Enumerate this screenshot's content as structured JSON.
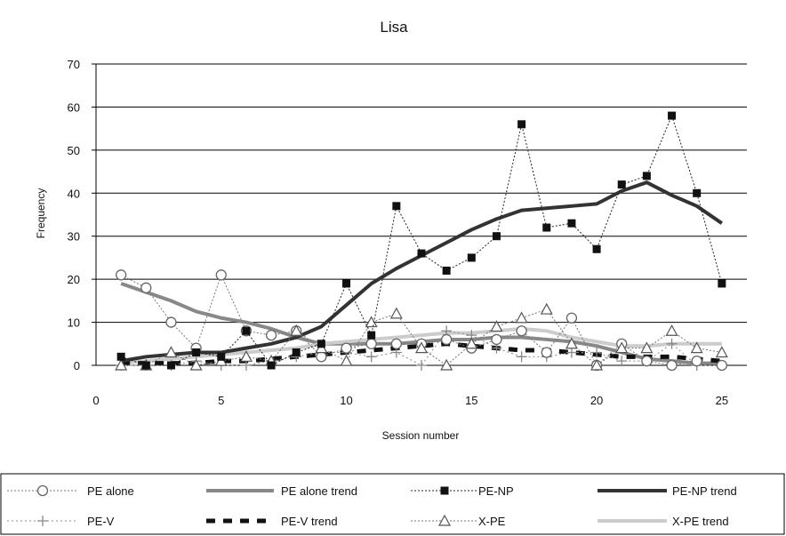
{
  "chart_data": {
    "type": "line",
    "title": "Lisa",
    "xlabel": "Session number",
    "ylabel": "Frequency",
    "xlim": [
      0,
      26
    ],
    "ylim": [
      0,
      70
    ],
    "xticks": [
      0,
      5,
      10,
      15,
      20,
      25
    ],
    "yticks": [
      0,
      10,
      20,
      30,
      40,
      50,
      60,
      70
    ],
    "grid": "horizontal",
    "legend_position": "bottom",
    "series": [
      {
        "name": "PE alone",
        "legend_label": "PE alone",
        "style": "open-circle-dotted",
        "color": "#777777",
        "x": [
          1,
          2,
          3,
          4,
          5,
          6,
          7,
          8,
          9,
          10,
          11,
          12,
          13,
          14,
          15,
          16,
          17,
          18,
          19,
          20,
          21,
          22,
          23,
          24,
          25
        ],
        "y": [
          21,
          18,
          10,
          4,
          21,
          8,
          7,
          8,
          2,
          4,
          5,
          5,
          5,
          6,
          4,
          6,
          8,
          3,
          11,
          0,
          5,
          1,
          0,
          1,
          0
        ]
      },
      {
        "name": "PE alone trend",
        "legend_label": "PE alone trend",
        "style": "thick-line",
        "color": "#888888",
        "x": [
          1,
          2,
          3,
          4,
          5,
          6,
          7,
          8,
          9,
          10,
          11,
          12,
          13,
          14,
          15,
          16,
          17,
          18,
          19,
          20,
          21,
          22,
          23,
          24,
          25
        ],
        "y": [
          19,
          17,
          15,
          12.5,
          11,
          10,
          8.5,
          6.5,
          5,
          5,
          5,
          5,
          5.5,
          6,
          6,
          6.5,
          6.5,
          6,
          5.5,
          4.5,
          3,
          1.5,
          1,
          0.5,
          0.5
        ]
      },
      {
        "name": "PE-NP",
        "legend_label": "PE-NP",
        "style": "filled-square-dotted",
        "color": "#222222",
        "x": [
          1,
          2,
          3,
          4,
          5,
          6,
          7,
          8,
          9,
          10,
          11,
          12,
          13,
          14,
          15,
          16,
          17,
          18,
          19,
          20,
          21,
          22,
          23,
          24,
          25
        ],
        "y": [
          2,
          0,
          0,
          3,
          2,
          8,
          0,
          3,
          5,
          19,
          7,
          37,
          26,
          22,
          25,
          30,
          56,
          32,
          33,
          27,
          42,
          44,
          58,
          40,
          19
        ]
      },
      {
        "name": "PE-NP trend",
        "legend_label": "PE-NP trend",
        "style": "thick-line",
        "color": "#333333",
        "x": [
          1,
          2,
          3,
          4,
          5,
          6,
          7,
          8,
          9,
          10,
          11,
          12,
          13,
          14,
          15,
          16,
          17,
          18,
          19,
          20,
          21,
          22,
          23,
          24,
          25
        ],
        "y": [
          1,
          2,
          2.5,
          3,
          3,
          4,
          5,
          6.5,
          9,
          14,
          19,
          22.5,
          25.5,
          28.5,
          31.5,
          34,
          36,
          36.5,
          37,
          37.5,
          40.5,
          42.5,
          39.5,
          37,
          33
        ]
      },
      {
        "name": "PE-V",
        "legend_label": "PE-V",
        "style": "plus-dotted",
        "color": "#888888",
        "x": [
          1,
          2,
          3,
          4,
          5,
          6,
          7,
          8,
          9,
          10,
          11,
          12,
          13,
          14,
          15,
          16,
          17,
          18,
          19,
          20,
          21,
          22,
          23,
          24,
          25
        ],
        "y": [
          0,
          0,
          0,
          1,
          0,
          0,
          1,
          2,
          3,
          3,
          2,
          3,
          0,
          8,
          7,
          4,
          2,
          2,
          3,
          3,
          1,
          1,
          5,
          0,
          0
        ]
      },
      {
        "name": "PE-V  trend",
        "legend_label": "PE-V  trend",
        "style": "thick-dashed",
        "color": "#111111",
        "x": [
          1,
          2,
          3,
          4,
          5,
          6,
          7,
          8,
          9,
          10,
          11,
          12,
          13,
          14,
          15,
          16,
          17,
          18,
          19,
          20,
          21,
          22,
          23,
          24,
          25
        ],
        "y": [
          0.5,
          0.5,
          0.5,
          0.5,
          1,
          1,
          1.5,
          2,
          2.5,
          3,
          3.5,
          4,
          4.5,
          5,
          4.5,
          4,
          3.5,
          3.5,
          3,
          2.5,
          2,
          2,
          2,
          1.5,
          1
        ]
      },
      {
        "name": "X-PE",
        "legend_label": "X-PE",
        "style": "open-triangle-dotted",
        "color": "#777777",
        "x": [
          1,
          2,
          3,
          4,
          5,
          6,
          7,
          8,
          9,
          10,
          11,
          12,
          13,
          14,
          15,
          16,
          17,
          18,
          19,
          20,
          21,
          22,
          23,
          24,
          25
        ],
        "y": [
          0,
          0,
          3,
          0,
          1,
          2,
          1,
          8,
          4,
          1,
          10,
          12,
          4,
          0,
          5,
          9,
          11,
          13,
          5,
          0,
          4,
          4,
          8,
          4,
          3
        ]
      },
      {
        "name": "X-PE trend",
        "legend_label": "X-PE trend",
        "style": "thick-line",
        "color": "#cccccc",
        "x": [
          1,
          2,
          3,
          4,
          5,
          6,
          7,
          8,
          9,
          10,
          11,
          12,
          13,
          14,
          15,
          16,
          17,
          18,
          19,
          20,
          21,
          22,
          23,
          24,
          25
        ],
        "y": [
          0.5,
          1,
          1.5,
          2,
          2.5,
          3,
          3.5,
          4,
          5,
          5.5,
          6,
          6.5,
          7,
          7.5,
          7.5,
          8,
          8.5,
          8,
          6.5,
          5.5,
          4.5,
          4.5,
          5,
          5,
          5
        ]
      }
    ]
  }
}
